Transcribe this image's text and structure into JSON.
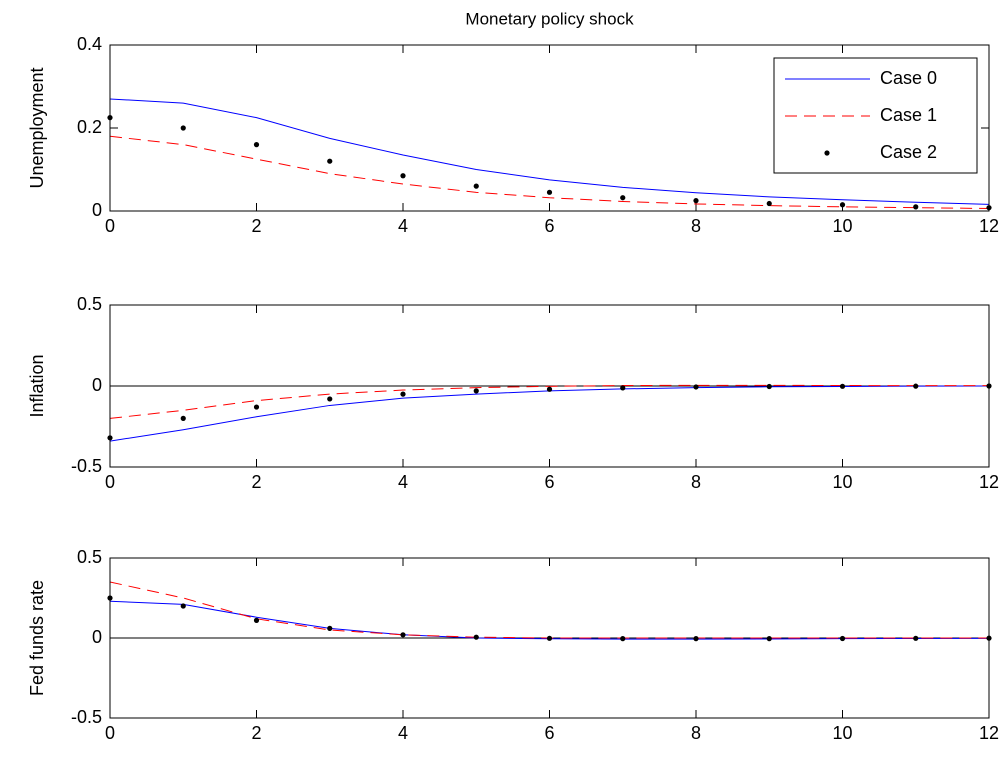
{
  "chart_data": [
    {
      "type": "line",
      "title": "Monetary policy shock",
      "ylabel": "Unemployment",
      "x": [
        0,
        1,
        2,
        3,
        4,
        5,
        6,
        7,
        8,
        9,
        10,
        11,
        12
      ],
      "xlim": [
        0,
        12
      ],
      "xticks": [
        0,
        2,
        4,
        6,
        8,
        10,
        12
      ],
      "ylim": [
        0,
        0.4
      ],
      "yticks": [
        0,
        0.2,
        0.4
      ],
      "legend": "upper right",
      "zero_line": false,
      "series": [
        {
          "name": "Case 0",
          "color": "#0000ff",
          "style": "solid",
          "values": [
            0.27,
            0.26,
            0.225,
            0.175,
            0.135,
            0.1,
            0.075,
            0.057,
            0.044,
            0.034,
            0.027,
            0.021,
            0.016
          ]
        },
        {
          "name": "Case 1",
          "color": "#ff0000",
          "style": "dashed",
          "values": [
            0.18,
            0.16,
            0.125,
            0.09,
            0.065,
            0.045,
            0.032,
            0.023,
            0.017,
            0.013,
            0.01,
            0.008,
            0.006
          ]
        },
        {
          "name": "Case 2",
          "color": "#000000",
          "style": "dots",
          "values": [
            0.225,
            0.2,
            0.16,
            0.12,
            0.085,
            0.06,
            0.045,
            0.032,
            0.025,
            0.018,
            0.015,
            0.01,
            0.008
          ]
        }
      ]
    },
    {
      "type": "line",
      "ylabel": "Inflation",
      "x": [
        0,
        1,
        2,
        3,
        4,
        5,
        6,
        7,
        8,
        9,
        10,
        11,
        12
      ],
      "xlim": [
        0,
        12
      ],
      "xticks": [
        0,
        2,
        4,
        6,
        8,
        10,
        12
      ],
      "ylim": [
        -0.5,
        0.5
      ],
      "yticks": [
        -0.5,
        0,
        0.5
      ],
      "zero_line": true,
      "series": [
        {
          "color": "#0000ff",
          "style": "solid",
          "values": [
            -0.34,
            -0.27,
            -0.19,
            -0.12,
            -0.075,
            -0.05,
            -0.03,
            -0.018,
            -0.01,
            -0.005,
            -0.003,
            -0.001,
            0
          ]
        },
        {
          "color": "#ff0000",
          "style": "dashed",
          "values": [
            -0.2,
            -0.15,
            -0.09,
            -0.05,
            -0.025,
            -0.01,
            -0.002,
            0.003,
            0.004,
            0.004,
            0.003,
            0.002,
            0.002
          ]
        },
        {
          "color": "#000000",
          "style": "dots",
          "values": [
            -0.32,
            -0.2,
            -0.13,
            -0.08,
            -0.05,
            -0.03,
            -0.02,
            -0.012,
            -0.006,
            -0.003,
            -0.002,
            -0.001,
            0
          ]
        }
      ]
    },
    {
      "type": "line",
      "ylabel": "Fed funds rate",
      "x": [
        0,
        1,
        2,
        3,
        4,
        5,
        6,
        7,
        8,
        9,
        10,
        11,
        12
      ],
      "xlim": [
        0,
        12
      ],
      "xticks": [
        0,
        2,
        4,
        6,
        8,
        10,
        12
      ],
      "ylim": [
        -0.5,
        0.5
      ],
      "yticks": [
        -0.5,
        0,
        0.5
      ],
      "zero_line": true,
      "series": [
        {
          "color": "#0000ff",
          "style": "solid",
          "values": [
            0.23,
            0.21,
            0.13,
            0.06,
            0.02,
            0.0,
            -0.005,
            -0.007,
            -0.007,
            -0.006,
            -0.004,
            -0.003,
            -0.002
          ]
        },
        {
          "color": "#ff0000",
          "style": "dashed",
          "values": [
            0.35,
            0.25,
            0.12,
            0.05,
            0.02,
            0.005,
            0,
            0,
            0,
            0,
            0,
            0,
            0
          ]
        },
        {
          "color": "#000000",
          "style": "dots",
          "values": [
            0.25,
            0.2,
            0.11,
            0.06,
            0.02,
            0.005,
            -0.002,
            -0.004,
            -0.004,
            -0.004,
            -0.003,
            -0.002,
            -0.001
          ]
        }
      ]
    }
  ]
}
